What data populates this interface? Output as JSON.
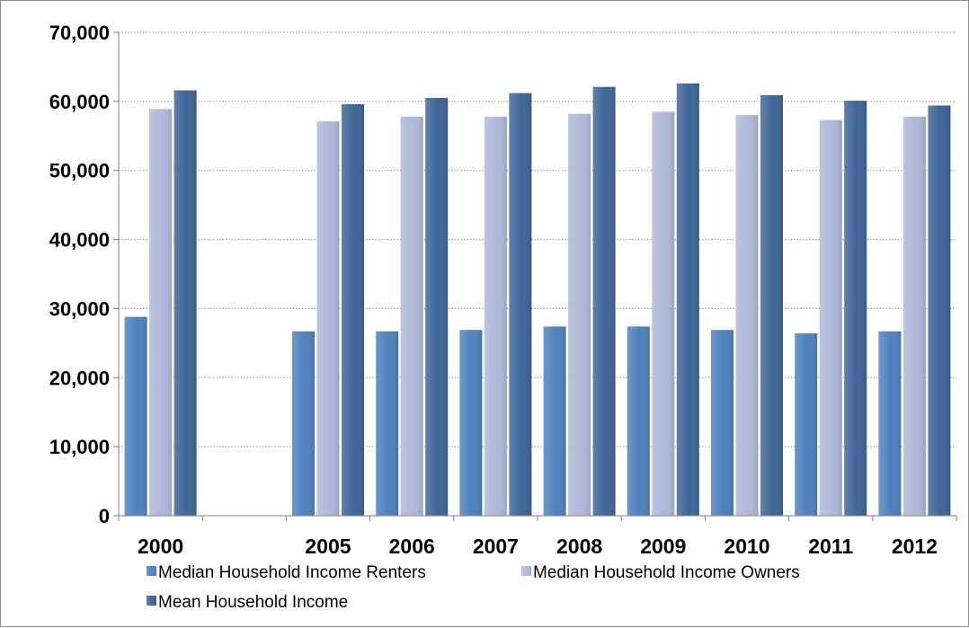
{
  "chart_data": {
    "type": "bar",
    "categories": [
      "2000",
      "",
      "2005",
      "2006",
      "2007",
      "2008",
      "2009",
      "2010",
      "2011",
      "2012"
    ],
    "series": [
      {
        "name": "Median Household Income Renters",
        "color": "#4f81bd",
        "values": [
          28800,
          null,
          26700,
          26700,
          26900,
          27400,
          27400,
          26900,
          26400,
          26700
        ]
      },
      {
        "name": "Median Household Income Owners",
        "color": "#adb9d8",
        "values": [
          58900,
          null,
          57100,
          57800,
          57800,
          58200,
          58500,
          58000,
          57300,
          57800
        ]
      },
      {
        "name": "Mean Household Income",
        "color": "#3e6597",
        "values": [
          61600,
          null,
          59600,
          60500,
          61200,
          62100,
          62600,
          60900,
          60100,
          59400
        ]
      }
    ],
    "ylim": [
      0,
      70000
    ],
    "yticks": [
      "0",
      "10,000",
      "20,000",
      "30,000",
      "40,000",
      "50,000",
      "60,000",
      "70,000"
    ],
    "ytick_values": [
      0,
      10000,
      20000,
      30000,
      40000,
      50000,
      60000,
      70000
    ],
    "grid": true,
    "grid_style": "dotted",
    "legend_position": "bottom",
    "title": "",
    "xlabel": "",
    "ylabel": ""
  }
}
